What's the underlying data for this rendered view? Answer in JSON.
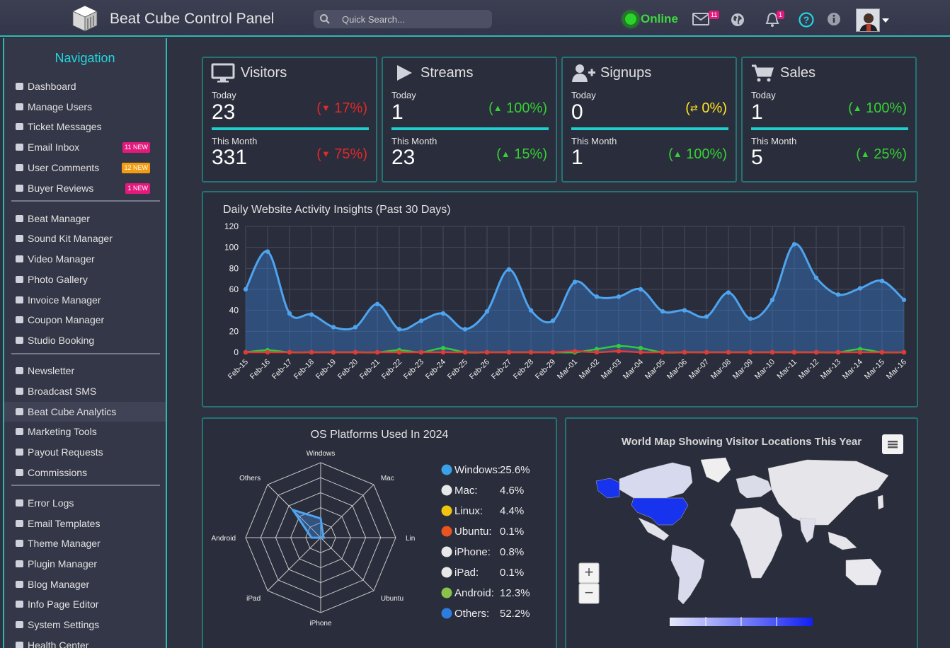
{
  "app": {
    "title": "Beat Cube Control Panel",
    "status": "Online"
  },
  "search": {
    "placeholder": "Quick Search..."
  },
  "topbar": {
    "mail_badge": "11",
    "bell_badge": "1"
  },
  "sidebar": {
    "title": "Navigation",
    "items": [
      {
        "label": "Dashboard",
        "icon": "dashboard-icon"
      },
      {
        "label": "Manage Users",
        "icon": "users-icon"
      },
      {
        "label": "Ticket Messages",
        "icon": "comments-icon"
      },
      {
        "label": "Email Inbox",
        "icon": "envelope-icon",
        "badge": "11 NEW",
        "badge_color": "#e4197d"
      },
      {
        "label": "User Comments",
        "icon": "comment-icon",
        "badge": "12 NEW",
        "badge_color": "#f39c12"
      },
      {
        "label": "Buyer Reviews",
        "icon": "star-icon",
        "badge": "1 NEW",
        "badge_color": "#e4197d"
      },
      {
        "label": "Beat Manager",
        "icon": "upload-icon"
      },
      {
        "label": "Sound Kit Manager",
        "icon": "music-icon"
      },
      {
        "label": "Video Manager",
        "icon": "film-icon"
      },
      {
        "label": "Photo Gallery",
        "icon": "image-icon"
      },
      {
        "label": "Invoice Manager",
        "icon": "money-icon"
      },
      {
        "label": "Coupon Manager",
        "icon": "percent-icon"
      },
      {
        "label": "Studio Booking",
        "icon": "book-icon"
      },
      {
        "label": "Newsletter",
        "icon": "newspaper-icon"
      },
      {
        "label": "Broadcast SMS",
        "icon": "envelope-icon"
      },
      {
        "label": "Beat Cube Analytics",
        "icon": "globe-icon",
        "active": true
      },
      {
        "label": "Marketing Tools",
        "icon": "link-icon"
      },
      {
        "label": "Payout Requests",
        "icon": "paypal-icon"
      },
      {
        "label": "Commissions",
        "icon": "cart-icon"
      },
      {
        "label": "Error Logs",
        "icon": "warning-icon"
      },
      {
        "label": "Email Templates",
        "icon": "template-icon"
      },
      {
        "label": "Theme Manager",
        "icon": "brush-icon"
      },
      {
        "label": "Plugin Manager",
        "icon": "plug-icon"
      },
      {
        "label": "Blog Manager",
        "icon": "chat-icon"
      },
      {
        "label": "Info Page Editor",
        "icon": "edit-icon"
      },
      {
        "label": "System Settings",
        "icon": "gear-icon"
      },
      {
        "label": "Health Center",
        "icon": "health-icon"
      }
    ]
  },
  "stats": [
    {
      "title": "Visitors",
      "icon": "desktop-icon",
      "today_label": "Today",
      "today": "23",
      "today_change": "17%",
      "today_dir": "down",
      "month_label": "This Month",
      "month": "331",
      "month_change": "75%",
      "month_dir": "down"
    },
    {
      "title": "Streams",
      "icon": "play-icon",
      "today_label": "Today",
      "today": "1",
      "today_change": "100%",
      "today_dir": "up",
      "month_label": "This Month",
      "month": "23",
      "month_change": "15%",
      "month_dir": "up"
    },
    {
      "title": "Signups",
      "icon": "user-plus-icon",
      "today_label": "Today",
      "today": "0",
      "today_change": "0%",
      "today_dir": "flat",
      "month_label": "This Month",
      "month": "1",
      "month_change": "100%",
      "month_dir": "up"
    },
    {
      "title": "Sales",
      "icon": "cart-icon",
      "today_label": "Today",
      "today": "1",
      "today_change": "100%",
      "today_dir": "up",
      "month_label": "This Month",
      "month": "5",
      "month_change": "25%",
      "month_dir": "up"
    }
  ],
  "chart_data": [
    {
      "type": "area",
      "title": "Daily Website Activity Insights (Past 30 Days)",
      "ylim": [
        0,
        120
      ],
      "yticks": [
        0,
        20,
        40,
        60,
        80,
        100,
        120
      ],
      "categories": [
        "Feb-15",
        "Feb-16",
        "Feb-17",
        "Feb-18",
        "Feb-19",
        "Feb-20",
        "Feb-21",
        "Feb-22",
        "Feb-23",
        "Feb-24",
        "Feb-25",
        "Feb-26",
        "Feb-27",
        "Feb-28",
        "Feb-29",
        "Mar-01",
        "Mar-02",
        "Mar-03",
        "Mar-04",
        "Mar-05",
        "Mar-06",
        "Mar-07",
        "Mar-08",
        "Mar-09",
        "Mar-10",
        "Mar-11",
        "Mar-12",
        "Mar-13",
        "Mar-14",
        "Mar-15",
        "Mar-16"
      ],
      "series": [
        {
          "color": "#4ea4ef",
          "values": [
            60,
            96,
            37,
            36,
            24,
            24,
            46,
            22,
            30,
            37,
            22,
            39,
            79,
            40,
            30,
            67,
            53,
            53,
            60,
            39,
            40,
            34,
            57,
            32,
            50,
            103,
            71,
            55,
            61,
            68,
            50
          ]
        },
        {
          "color": "#2ecc40",
          "values": [
            0,
            2,
            0,
            0,
            0,
            0,
            0,
            2,
            0,
            4,
            0,
            0,
            0,
            0,
            0,
            0,
            3,
            6,
            4,
            0,
            0,
            0,
            0,
            0,
            0,
            0,
            0,
            0,
            3,
            0,
            0
          ]
        },
        {
          "color": "#e53935",
          "values": [
            0,
            0,
            0,
            0,
            0,
            0,
            0,
            0,
            0,
            0,
            0,
            0,
            0,
            0,
            0,
            1,
            0,
            1,
            0,
            0,
            0,
            0,
            0,
            0,
            0,
            0,
            0,
            0,
            0,
            0,
            0
          ]
        }
      ]
    },
    {
      "type": "radar",
      "title": "OS Platforms Used In 2024",
      "categories": [
        "Windows",
        "Mac",
        "Linux",
        "Ubuntu",
        "iPhone",
        "iPad",
        "Android",
        "Others"
      ],
      "values": [
        25.6,
        4.6,
        4.4,
        0.1,
        0.8,
        0.1,
        12.3,
        52.2
      ],
      "rmax": 100
    }
  ],
  "os_legend": [
    {
      "label": "Windows:",
      "value": "25.6%",
      "icon": "windows-icon"
    },
    {
      "label": "Mac:",
      "value": "4.6%",
      "icon": "apple-icon"
    },
    {
      "label": "Linux:",
      "value": "4.4%",
      "icon": "linux-icon"
    },
    {
      "label": "Ubuntu:",
      "value": "0.1%",
      "icon": "ubuntu-icon"
    },
    {
      "label": "iPhone:",
      "value": "0.8%",
      "icon": "apple-icon"
    },
    {
      "label": "iPad:",
      "value": "0.1%",
      "icon": "apple-icon"
    },
    {
      "label": "Android:",
      "value": "12.3%",
      "icon": "android-icon"
    },
    {
      "label": "Others:",
      "value": "52.2%",
      "icon": "question-icon"
    }
  ],
  "map": {
    "title": "World Map Showing Visitor Locations This Year",
    "zoom_in": "+",
    "zoom_out": "−"
  }
}
